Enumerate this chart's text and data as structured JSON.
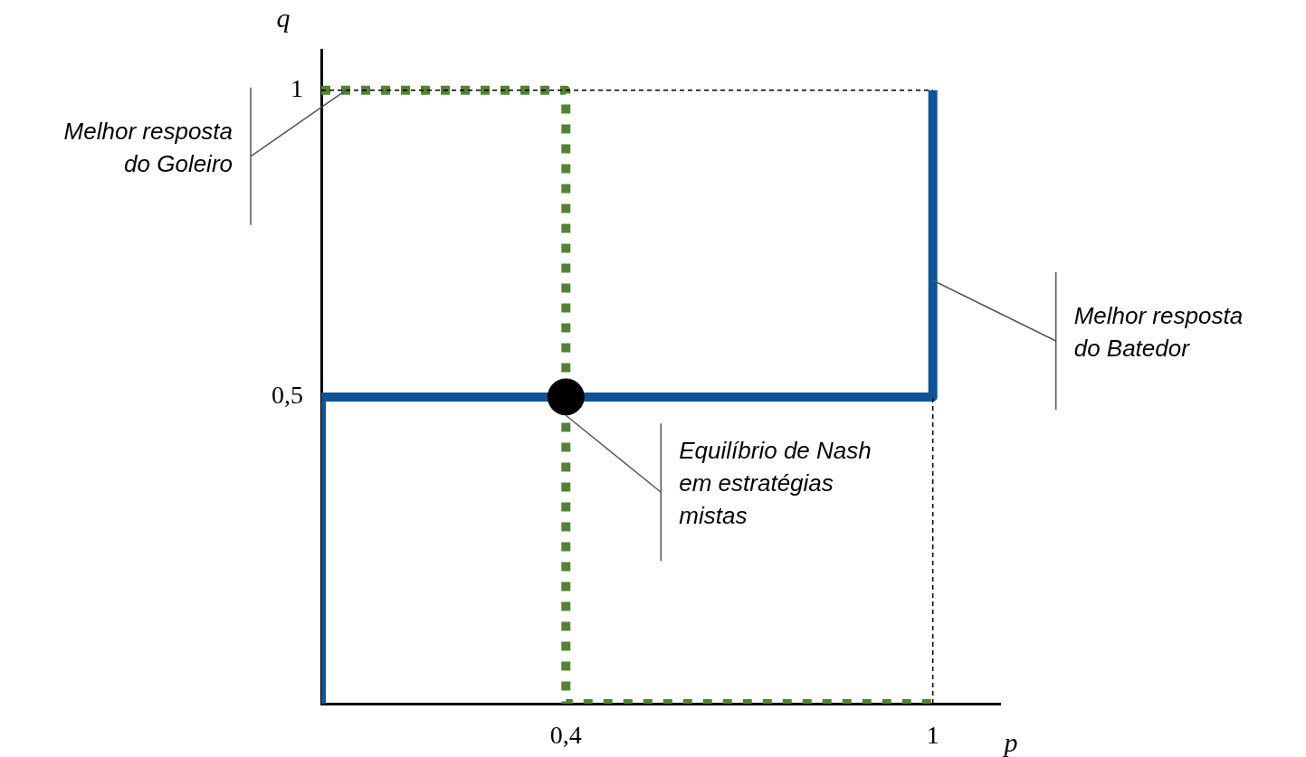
{
  "chart_data": {
    "type": "line",
    "xlabel": "p",
    "ylabel": "q",
    "xlim": [
      0,
      1.11
    ],
    "ylim": [
      0,
      1.066
    ],
    "xticks": [
      {
        "value": 0.4,
        "label": "0,4"
      },
      {
        "value": 1,
        "label": "1"
      }
    ],
    "yticks": [
      {
        "value": 0.5,
        "label": "0,5"
      },
      {
        "value": 1,
        "label": "1"
      }
    ],
    "grid": false,
    "legend": false,
    "marker": "none",
    "series": [
      {
        "color": "#000000",
        "line_style": "dashed",
        "x": [
          0,
          1
        ],
        "values": [
          1,
          1
        ]
      },
      {
        "color": "#000000",
        "line_style": "dashed",
        "x": [
          1,
          1
        ],
        "values": [
          0,
          0.5
        ]
      },
      {
        "color": "#548235",
        "line_style": "dotted",
        "x": [
          0,
          0.4,
          0.4,
          1
        ],
        "values": [
          1,
          1,
          0,
          0
        ]
      },
      {
        "color": "#0f5496",
        "line_style": "solid",
        "x": [
          0,
          0,
          1,
          1
        ],
        "values": [
          0,
          0.5,
          0.5,
          1
        ]
      },
      {
        "type": "scatter",
        "color": "#000000",
        "marker": "circle",
        "x": [
          0.4
        ],
        "values": [
          0.5
        ]
      }
    ],
    "annotations": [
      {
        "text": "Melhor resposta do Goleiro",
        "x": 0.04,
        "y": 1
      },
      {
        "text": "Melhor resposta do Batedor",
        "x": 1,
        "y": 0.69
      },
      {
        "text": "Equilíbrio de Nash em estratégias mistas",
        "x": 0.4,
        "y": 0.47
      }
    ]
  }
}
